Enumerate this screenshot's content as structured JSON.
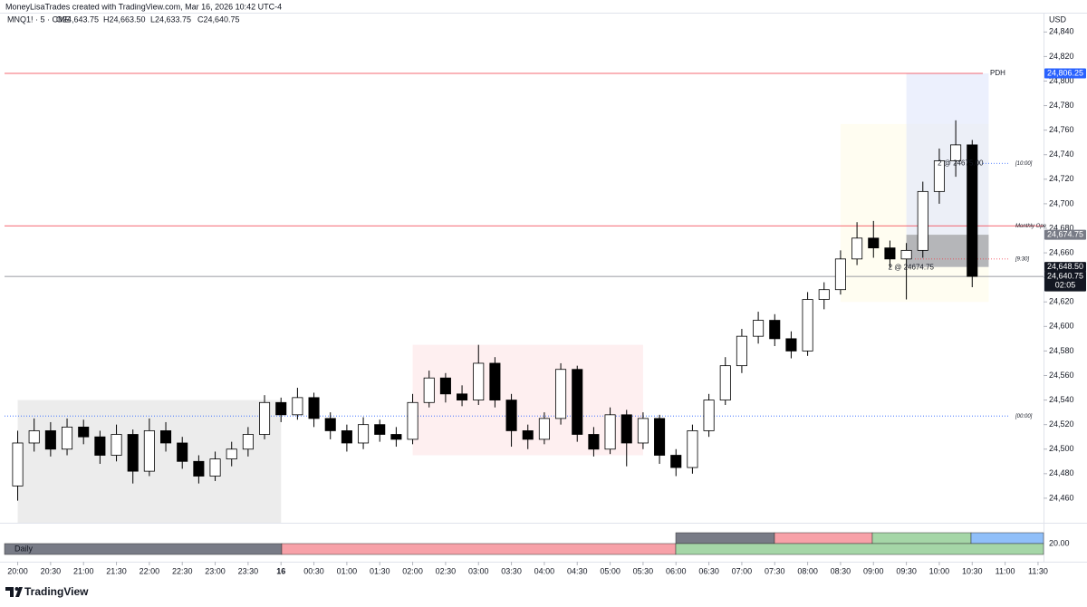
{
  "header": {
    "credit": "MoneyLisaTrades created with TradingView.com, Mar 16, 2026 10:42 UTC-4",
    "symbol": "MNQ1! · 5 · CME",
    "open": "O24,643.75",
    "high": "H24,663.50",
    "low": "L24,633.75",
    "close": "C24,640.75",
    "currency": "USD"
  },
  "chart_data": {
    "type": "candlestick",
    "ylim": [
      24440,
      24855
    ],
    "yticks": [
      {
        "value": 24460,
        "label": "24,460"
      },
      {
        "value": 24480,
        "label": "24,480"
      },
      {
        "value": 24500,
        "label": "24,500"
      },
      {
        "value": 24520,
        "label": "24,520"
      },
      {
        "value": 24540,
        "label": "24,540"
      },
      {
        "value": 24560,
        "label": "24,560"
      },
      {
        "value": 24580,
        "label": "24,580"
      },
      {
        "value": 24600,
        "label": "24,600"
      },
      {
        "value": 24620,
        "label": "24,620"
      },
      {
        "value": 24640,
        "label": "24,640"
      },
      {
        "value": 24660,
        "label": "24,660"
      },
      {
        "value": 24680,
        "label": "24,680"
      },
      {
        "value": 24700,
        "label": "24,700"
      },
      {
        "value": 24720,
        "label": "24,720"
      },
      {
        "value": 24740,
        "label": "24,740"
      },
      {
        "value": 24760,
        "label": "24,760"
      },
      {
        "value": 24780,
        "label": "24,780"
      },
      {
        "value": 24800,
        "label": "24,800"
      },
      {
        "value": 24820,
        "label": "24,820"
      },
      {
        "value": 24840,
        "label": "24,840"
      }
    ],
    "xlim": [
      "19:48",
      "11:35"
    ],
    "xticks": [
      "20:00",
      "20:30",
      "21:00",
      "21:30",
      "22:00",
      "22:30",
      "23:00",
      "23:30",
      {
        "value": "00:00",
        "label": "16"
      },
      "00:30",
      "01:00",
      "01:30",
      "02:00",
      "02:30",
      "03:00",
      "03:30",
      "04:00",
      "04:30",
      "05:00",
      "05:30",
      "06:00",
      "06:30",
      "07:00",
      "07:30",
      "08:00",
      "08:30",
      "09:00",
      "09:30",
      "10:00",
      "10:30",
      "11:00",
      "11:30"
    ],
    "x": [
      "20:00",
      "20:15",
      "20:30",
      "20:45",
      "21:00",
      "21:15",
      "21:30",
      "21:45",
      "22:00",
      "22:15",
      "22:30",
      "22:45",
      "23:00",
      "23:15",
      "23:30",
      "23:45",
      "00:00",
      "00:15",
      "00:30",
      "00:45",
      "01:00",
      "01:15",
      "01:30",
      "01:45",
      "02:00",
      "02:15",
      "02:30",
      "02:45",
      "03:00",
      "03:15",
      "03:30",
      "03:45",
      "04:00",
      "04:15",
      "04:30",
      "04:45",
      "05:00",
      "05:15",
      "05:30",
      "05:45",
      "06:00",
      "06:15",
      "06:30",
      "06:45",
      "07:00",
      "07:15",
      "07:30",
      "07:45",
      "08:00",
      "08:15",
      "08:30",
      "08:45",
      "09:00",
      "09:15",
      "09:30",
      "09:45",
      "10:00",
      "10:15",
      "10:30"
    ],
    "open": [
      24470,
      24505,
      24515,
      24500,
      24518,
      24510,
      24495,
      24512,
      24482,
      24515,
      24505,
      24490,
      24478,
      24492,
      24500,
      24512,
      24538,
      24528,
      24542,
      24525,
      24515,
      24505,
      24520,
      24512,
      24508,
      24538,
      24558,
      24545,
      24540,
      24570,
      24540,
      24515,
      24508,
      24525,
      24565,
      24512,
      24500,
      24528,
      24505,
      24525,
      24495,
      24485,
      24515,
      24540,
      24568,
      24592,
      24605,
      24590,
      24580,
      24622,
      24630,
      24655,
      24672,
      24664,
      24655,
      24662,
      24710,
      24735,
      24748
    ],
    "high": [
      24515,
      24525,
      24522,
      24525,
      24524,
      24515,
      24520,
      24516,
      24525,
      24522,
      24510,
      24495,
      24498,
      24506,
      24518,
      24544,
      24542,
      24550,
      24546,
      24530,
      24520,
      24526,
      24524,
      24518,
      24545,
      24564,
      24562,
      24552,
      24585,
      24575,
      24545,
      24520,
      24530,
      24570,
      24568,
      24518,
      24534,
      24532,
      24530,
      24528,
      24500,
      24520,
      24545,
      24575,
      24598,
      24612,
      24610,
      24596,
      24628,
      24636,
      24662,
      24685,
      24686,
      24670,
      24668,
      24718,
      24745,
      24768,
      24752
    ],
    "low": [
      24458,
      24498,
      24494,
      24495,
      24504,
      24488,
      24490,
      24472,
      24478,
      24498,
      24484,
      24472,
      24474,
      24486,
      24494,
      24508,
      24522,
      24524,
      24518,
      24508,
      24498,
      24500,
      24506,
      24502,
      24504,
      24534,
      24538,
      24535,
      24536,
      24534,
      24502,
      24500,
      24504,
      24520,
      24506,
      24494,
      24496,
      24486,
      24500,
      24488,
      24478,
      24480,
      24510,
      24536,
      24562,
      24586,
      24584,
      24574,
      24576,
      24614,
      24626,
      24650,
      24656,
      24648,
      24622,
      24656,
      24700,
      24722,
      24632
    ],
    "close": [
      24505,
      24515,
      24500,
      24518,
      24510,
      24495,
      24512,
      24482,
      24515,
      24505,
      24490,
      24478,
      24492,
      24500,
      24512,
      24538,
      24528,
      24542,
      24525,
      24515,
      24505,
      24520,
      24512,
      24508,
      24538,
      24558,
      24545,
      24540,
      24570,
      24540,
      24515,
      24508,
      24525,
      24565,
      24512,
      24500,
      24528,
      24505,
      24525,
      24495,
      24485,
      24515,
      24540,
      24568,
      24592,
      24605,
      24590,
      24580,
      24622,
      24630,
      24655,
      24672,
      24664,
      24655,
      24662,
      24710,
      24735,
      24748,
      24640.75
    ],
    "up_color": "#ffffff",
    "down_color": "#000000",
    "zones": [
      {
        "from": "20:00",
        "to": "00:00",
        "low": 24440,
        "high": 24540,
        "color": "#e0e0e0"
      },
      {
        "from": "02:00",
        "to": "05:30",
        "low": 24495,
        "high": 24585,
        "color": "#fde4e6"
      },
      {
        "from": "08:30",
        "to": "10:45",
        "low": 24620,
        "high": 24765,
        "color": "#fffbe8"
      },
      {
        "from": "09:30",
        "to": "10:45",
        "low": 24648.5,
        "high": 24806.25,
        "color": "#dfe6fb"
      },
      {
        "from": "09:30",
        "to": "10:45",
        "low": 24648.5,
        "high": 24674.75,
        "color": "#9e9e9e"
      }
    ],
    "levels": [
      {
        "label": "PDH",
        "value": 24806.25,
        "color": "#f23645"
      },
      {
        "label": "Monthly Ope",
        "value": 24682,
        "color": "#f23645"
      },
      {
        "label": "[10:00]",
        "value": 24733,
        "color": "#2962ff"
      },
      {
        "label": "[9:30]",
        "value": 24655,
        "color": "#f23645"
      },
      {
        "label": "[00:00]",
        "value": 24527,
        "color": "#2962ff"
      }
    ],
    "annotations": [
      {
        "text": "2 @ 24674.75",
        "x": "09:30",
        "price": 24648
      },
      {
        "text": "2 @ 24675.00",
        "x": "10:15",
        "price": 24733
      }
    ],
    "price_badges": [
      {
        "value": 24806.25,
        "label": "24,806.25",
        "color": "#2962ff"
      },
      {
        "value": 24674.75,
        "label": "24,674.75",
        "color": "#787b86"
      },
      {
        "value": 24648.5,
        "label": "24,648.50",
        "color": "#131722"
      },
      {
        "value": 24640.75,
        "label": "24,640.75",
        "color": "#131722",
        "sub": "02:05"
      }
    ],
    "last_price": 24640.75
  },
  "panel": {
    "label": "Daily",
    "scale": "20.00"
  },
  "footer": {
    "brand": "TradingView"
  }
}
